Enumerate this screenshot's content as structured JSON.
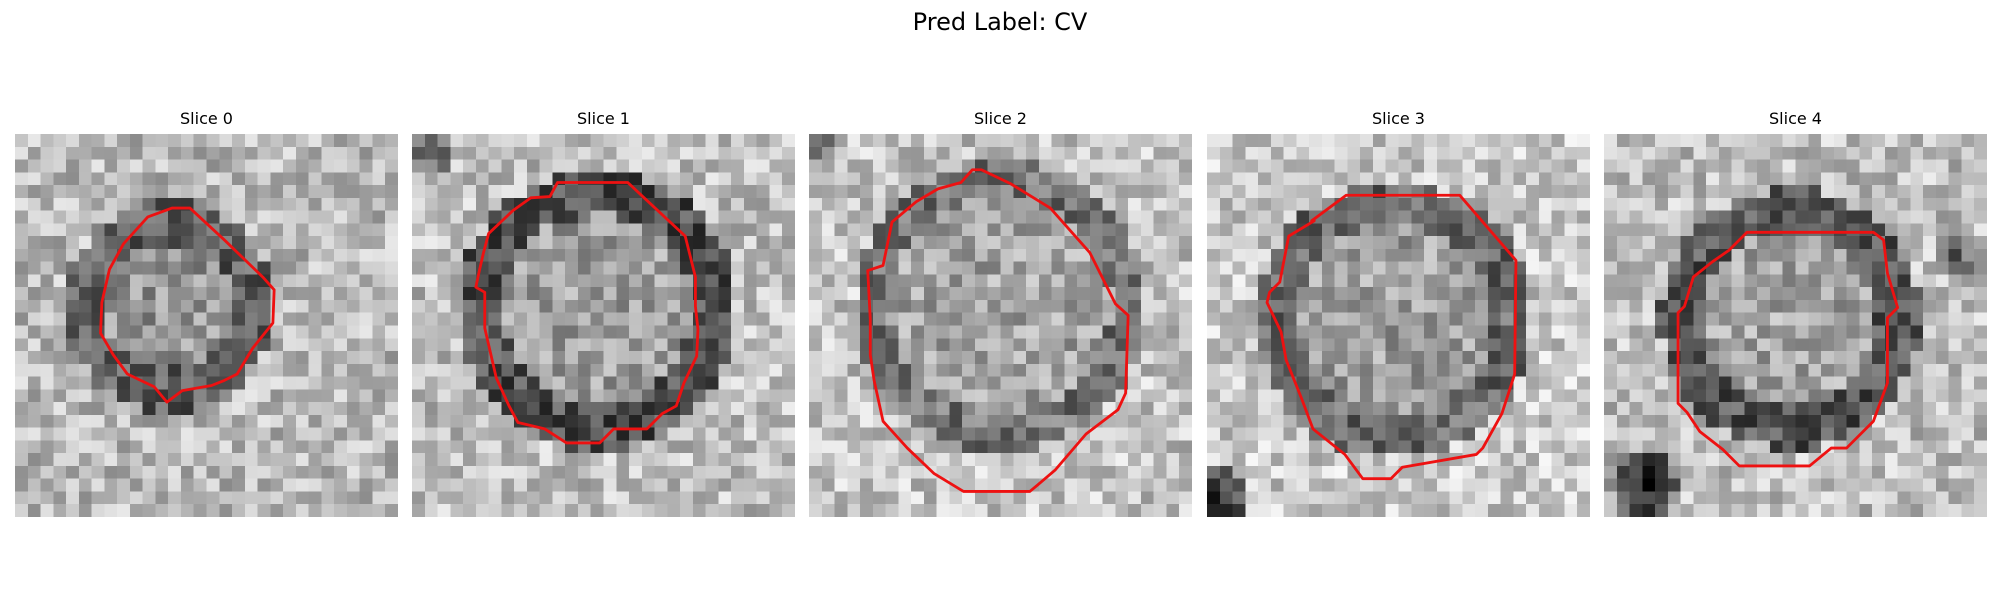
{
  "figure": {
    "title": "Pred Label: CV"
  },
  "panels": [
    {
      "title": "Slice 0"
    },
    {
      "title": "Slice 1"
    },
    {
      "title": "Slice 2"
    },
    {
      "title": "Slice 3"
    },
    {
      "title": "Slice 4"
    }
  ],
  "colors": {
    "contour": "#ee1111",
    "background": "#ffffff"
  }
}
